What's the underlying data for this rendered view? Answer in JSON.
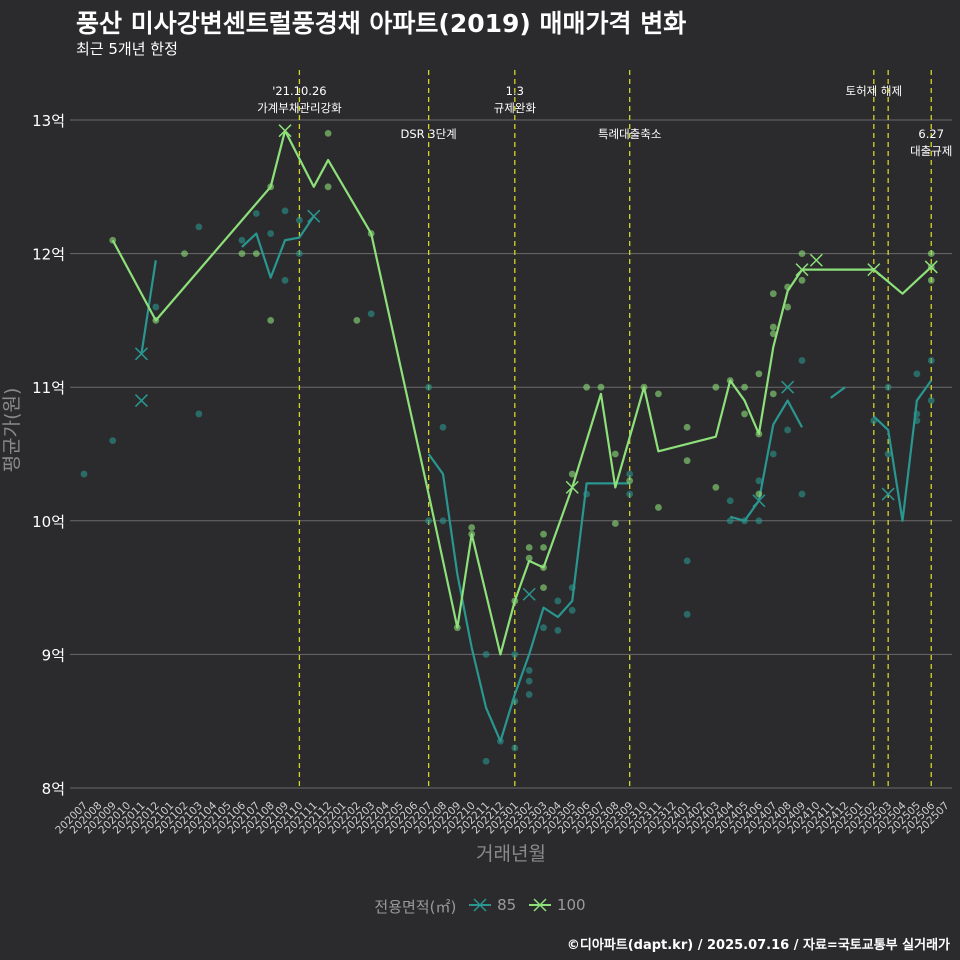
{
  "title": "풍산 미사강변센트럴풍경채 아파트(2019) 매매가격 변화",
  "subtitle": "최근 5개년 한정",
  "caption": "©디아파트(dapt.kr) / 2025.07.16 / 자료=국토교통부 실거래가",
  "colors": {
    "background": "#2b2b2d",
    "series85": "#2a9690",
    "series100": "#8de07a",
    "event_line": "#d4d42a",
    "grid": "#6a6a6a"
  },
  "chart_data": {
    "type": "line",
    "xlabel": "거래년월",
    "ylabel": "평균가(원)",
    "ylim": [
      8,
      13.3
    ],
    "y_ticks": [
      {
        "value": 8,
        "label": "8억"
      },
      {
        "value": 9,
        "label": "9억"
      },
      {
        "value": 10,
        "label": "10억"
      },
      {
        "value": 11,
        "label": "11억"
      },
      {
        "value": 12,
        "label": "12억"
      },
      {
        "value": 13,
        "label": "13억"
      }
    ],
    "categories": [
      "202007",
      "202008",
      "202009",
      "202010",
      "202011",
      "202012",
      "202101",
      "202102",
      "202103",
      "202104",
      "202105",
      "202106",
      "202107",
      "202108",
      "202109",
      "202110",
      "202111",
      "202112",
      "202201",
      "202202",
      "202203",
      "202204",
      "202205",
      "202206",
      "202207",
      "202208",
      "202209",
      "202210",
      "202211",
      "202212",
      "202301",
      "202302",
      "202303",
      "202304",
      "202305",
      "202306",
      "202307",
      "202308",
      "202309",
      "202310",
      "202311",
      "202312",
      "202401",
      "202402",
      "202403",
      "202404",
      "202405",
      "202406",
      "202407",
      "202408",
      "202409",
      "202410",
      "202411",
      "202412",
      "202501",
      "202502",
      "202503",
      "202504",
      "202505",
      "202506",
      "202507"
    ],
    "legend_title": "전용면적(㎡)",
    "events": [
      {
        "x": "202110",
        "lines": [
          "'21.10.26",
          "가계부채관리강화"
        ],
        "row": 0
      },
      {
        "x": "202207",
        "lines": [
          "DSR 3단계"
        ],
        "row": 1
      },
      {
        "x": "202301",
        "lines": [
          "1.3",
          "규제완화"
        ],
        "row": 0
      },
      {
        "x": "202309",
        "lines": [
          "특례대출축소"
        ],
        "row": 1
      },
      {
        "x": "202502",
        "lines": [
          "토허제 해제"
        ],
        "row": 0
      },
      {
        "x": "202503",
        "lines": [],
        "row": 0
      },
      {
        "x": "202506",
        "lines": [
          "6.27",
          "대출규제"
        ],
        "row": 1
      }
    ],
    "series": [
      {
        "name": "85",
        "line_segments": [
          [
            [
              "202011",
              11.25
            ],
            [
              "202012",
              11.95
            ]
          ],
          [
            [
              "202106",
              12.05
            ],
            [
              "202107",
              12.15
            ],
            [
              "202108",
              11.82
            ],
            [
              "202109",
              12.1
            ],
            [
              "202110",
              12.12
            ],
            [
              "202111",
              12.28
            ]
          ],
          [
            [
              "202207",
              10.5
            ],
            [
              "202208",
              10.35
            ],
            [
              "202209",
              9.6
            ],
            [
              "202210",
              9.05
            ],
            [
              "202211",
              8.6
            ],
            [
              "202212",
              8.35
            ],
            [
              "202301",
              8.7
            ],
            [
              "202302",
              9.0
            ],
            [
              "202303",
              9.35
            ],
            [
              "202304",
              9.28
            ],
            [
              "202305",
              9.4
            ],
            [
              "202306",
              10.28
            ],
            [
              "202307",
              10.28
            ],
            [
              "202308",
              10.28
            ],
            [
              "202309",
              10.28
            ]
          ],
          [
            [
              "202404",
              10.03
            ],
            [
              "202405",
              10.0
            ],
            [
              "202406",
              10.15
            ],
            [
              "202407",
              10.72
            ],
            [
              "202408",
              10.9
            ],
            [
              "202409",
              10.7
            ]
          ],
          [
            [
              "202411",
              10.92
            ],
            [
              "202412",
              11.0
            ]
          ],
          [
            [
              "202502",
              10.78
            ],
            [
              "202503",
              10.68
            ],
            [
              "202504",
              10.0
            ],
            [
              "202505",
              10.9
            ],
            [
              "202506",
              11.05
            ]
          ]
        ],
        "points": [
          [
            "202007",
            10.35
          ],
          [
            "202009",
            10.6
          ],
          [
            "202012",
            11.6
          ],
          [
            "202103",
            12.2
          ],
          [
            "202103",
            10.8
          ],
          [
            "202106",
            12.1
          ],
          [
            "202107",
            12.3
          ],
          [
            "202108",
            12.15
          ],
          [
            "202109",
            12.32
          ],
          [
            "202109",
            11.8
          ],
          [
            "202110",
            12.25
          ],
          [
            "202110",
            12.0
          ],
          [
            "202203",
            11.55
          ],
          [
            "202207",
            11.0
          ],
          [
            "202207",
            10.0
          ],
          [
            "202208",
            10.7
          ],
          [
            "202208",
            10.0
          ],
          [
            "202211",
            8.2
          ],
          [
            "202211",
            9.0
          ],
          [
            "202212",
            8.35
          ],
          [
            "202301",
            9.0
          ],
          [
            "202301",
            8.3
          ],
          [
            "202301",
            8.65
          ],
          [
            "202302",
            8.7
          ],
          [
            "202302",
            8.8
          ],
          [
            "202302",
            8.88
          ],
          [
            "202303",
            9.2
          ],
          [
            "202304",
            9.18
          ],
          [
            "202304",
            9.4
          ],
          [
            "202305",
            9.5
          ],
          [
            "202305",
            9.33
          ],
          [
            "202306",
            10.2
          ],
          [
            "202309",
            10.2
          ],
          [
            "202309",
            10.35
          ],
          [
            "202401",
            9.3
          ],
          [
            "202401",
            9.7
          ],
          [
            "202404",
            10.0
          ],
          [
            "202404",
            10.15
          ],
          [
            "202405",
            10.0
          ],
          [
            "202406",
            10.3
          ],
          [
            "202406",
            10.0
          ],
          [
            "202407",
            10.5
          ],
          [
            "202408",
            10.68
          ],
          [
            "202409",
            10.2
          ],
          [
            "202409",
            11.2
          ],
          [
            "202502",
            10.75
          ],
          [
            "202503",
            11.0
          ],
          [
            "202503",
            10.5
          ],
          [
            "202505",
            10.8
          ],
          [
            "202505",
            10.75
          ],
          [
            "202505",
            11.1
          ],
          [
            "202506",
            11.2
          ],
          [
            "202506",
            10.9
          ]
        ],
        "crosses": [
          [
            "202011",
            11.25
          ],
          [
            "202011",
            10.9
          ],
          [
            "202111",
            12.28
          ],
          [
            "202302",
            9.45
          ],
          [
            "202406",
            10.15
          ],
          [
            "202408",
            11.0
          ],
          [
            "202503",
            10.2
          ]
        ]
      },
      {
        "name": "100",
        "line_segments": [
          [
            [
              "202009",
              12.1
            ],
            [
              "202012",
              11.5
            ],
            [
              "202108",
              12.5
            ],
            [
              "202109",
              12.92
            ],
            [
              "202111",
              12.5
            ],
            [
              "202112",
              12.7
            ],
            [
              "202203",
              12.15
            ],
            [
              "202207",
              10.2
            ],
            [
              "202209",
              9.2
            ],
            [
              "202210",
              9.9
            ],
            [
              "202212",
              9.0
            ],
            [
              "202301",
              9.4
            ],
            [
              "202302",
              9.7
            ],
            [
              "202303",
              9.65
            ],
            [
              "202305",
              10.25
            ],
            [
              "202307",
              10.95
            ],
            [
              "202308",
              10.25
            ],
            [
              "202310",
              11.0
            ],
            [
              "202311",
              10.52
            ],
            [
              "202403",
              10.63
            ],
            [
              "202404",
              11.05
            ],
            [
              "202405",
              10.9
            ],
            [
              "202406",
              10.65
            ],
            [
              "202407",
              11.3
            ],
            [
              "202408",
              11.72
            ],
            [
              "202409",
              11.88
            ],
            [
              "202502",
              11.88
            ],
            [
              "202504",
              11.7
            ],
            [
              "202506",
              11.9
            ]
          ]
        ],
        "points": [
          [
            "202009",
            12.1
          ],
          [
            "202012",
            11.5
          ],
          [
            "202102",
            12.0
          ],
          [
            "202106",
            12.0
          ],
          [
            "202107",
            12.0
          ],
          [
            "202108",
            11.5
          ],
          [
            "202108",
            12.5
          ],
          [
            "202112",
            12.9
          ],
          [
            "202112",
            12.5
          ],
          [
            "202202",
            11.5
          ],
          [
            "202203",
            12.15
          ],
          [
            "202209",
            9.2
          ],
          [
            "202210",
            9.95
          ],
          [
            "202210",
            9.9
          ],
          [
            "202301",
            9.4
          ],
          [
            "202302",
            9.8
          ],
          [
            "202302",
            9.72
          ],
          [
            "202303",
            9.9
          ],
          [
            "202303",
            9.8
          ],
          [
            "202303",
            9.65
          ],
          [
            "202303",
            9.5
          ],
          [
            "202305",
            10.35
          ],
          [
            "202306",
            11.0
          ],
          [
            "202307",
            11.0
          ],
          [
            "202308",
            10.5
          ],
          [
            "202308",
            9.98
          ],
          [
            "202309",
            10.3
          ],
          [
            "202310",
            11.0
          ],
          [
            "202311",
            10.95
          ],
          [
            "202311",
            10.1
          ],
          [
            "202401",
            10.7
          ],
          [
            "202401",
            10.45
          ],
          [
            "202403",
            11.0
          ],
          [
            "202403",
            10.25
          ],
          [
            "202404",
            11.05
          ],
          [
            "202405",
            11.0
          ],
          [
            "202405",
            10.8
          ],
          [
            "202406",
            11.1
          ],
          [
            "202406",
            10.65
          ],
          [
            "202406",
            10.2
          ],
          [
            "202407",
            11.7
          ],
          [
            "202407",
            11.45
          ],
          [
            "202407",
            11.4
          ],
          [
            "202407",
            10.95
          ],
          [
            "202408",
            11.75
          ],
          [
            "202408",
            11.6
          ],
          [
            "202409",
            12.0
          ],
          [
            "202409",
            11.8
          ],
          [
            "202506",
            12.0
          ],
          [
            "202506",
            11.9
          ],
          [
            "202506",
            11.8
          ]
        ],
        "crosses": [
          [
            "202109",
            12.92
          ],
          [
            "202305",
            10.25
          ],
          [
            "202409",
            11.88
          ],
          [
            "202410",
            11.95
          ],
          [
            "202502",
            11.88
          ],
          [
            "202506",
            11.9
          ]
        ]
      }
    ]
  }
}
